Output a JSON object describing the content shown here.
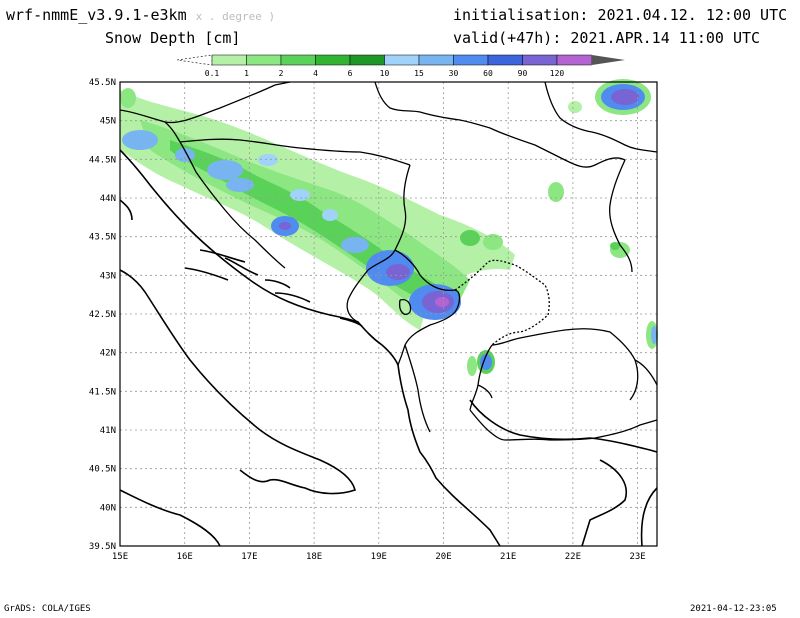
{
  "header": {
    "model": "wrf-nmmE_v3.9.1-e3km",
    "model_suffix": "x . degree )",
    "field": "Snow Depth [cm]",
    "init": "initialisation: 2021.04.12.  12:00 UTC",
    "valid": "valid(+47h): 2021.APR.14 11:00 UTC"
  },
  "colorbar": {
    "labels": [
      "0.1",
      "1",
      "2",
      "4",
      "6",
      "10",
      "15",
      "30",
      "60",
      "90",
      "120"
    ],
    "colors": [
      "#b4f0a5",
      "#8ce682",
      "#5ad25a",
      "#32b432",
      "#1e9628",
      "#a0d2fa",
      "#78b4f0",
      "#508cf0",
      "#3c64dc",
      "#7864d2",
      "#b464d2"
    ],
    "tip_color": "#555555"
  },
  "axes": {
    "lat_labels": [
      "45.5N",
      "45N",
      "44.5N",
      "44N",
      "43.5N",
      "43N",
      "42.5N",
      "42N",
      "41.5N",
      "41N",
      "40.5N",
      "40N",
      "39.5N"
    ],
    "lon_labels": [
      "15E",
      "16E",
      "17E",
      "18E",
      "19E",
      "20E",
      "21E",
      "22E",
      "23E"
    ],
    "lat_values": [
      45.5,
      45,
      44.5,
      44,
      43.5,
      43,
      42.5,
      42,
      41.5,
      41,
      40.5,
      40,
      39.5
    ],
    "lon_values": [
      15,
      16,
      17,
      18,
      19,
      20,
      21,
      22,
      23
    ],
    "lon_range": [
      15,
      23.3
    ],
    "lat_range": [
      39.5,
      45.5
    ],
    "grid": true
  },
  "footer": {
    "left": "GrADS: COLA/IGES",
    "right": "2021-04-12-23:05"
  }
}
